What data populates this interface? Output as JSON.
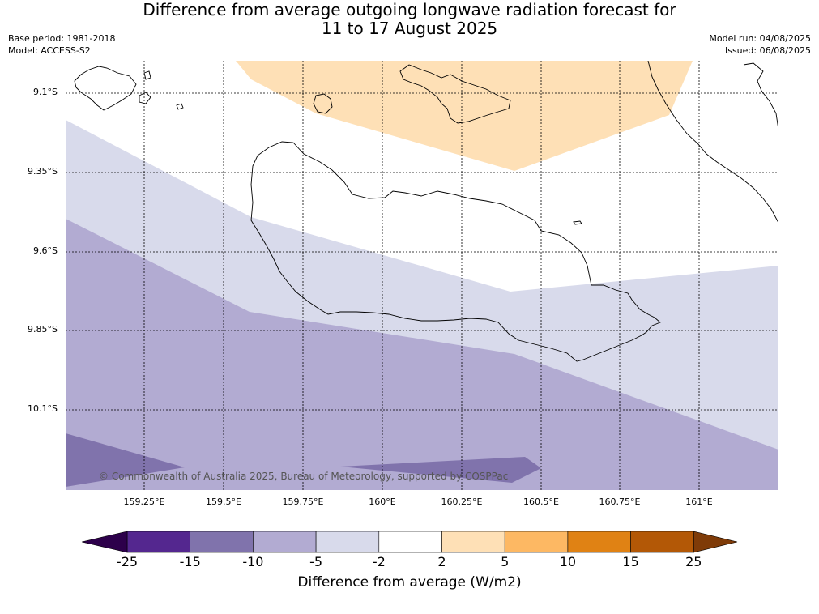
{
  "title_line1": "Difference from average outgoing longwave radiation forecast for",
  "title_line2": "11 to 17 August 2025",
  "base_period": "Base period: 1981-2018",
  "model": "Model: ACCESS-S2",
  "model_run": "Model run: 04/08/2025",
  "issued": "Issued: 06/08/2025",
  "lat_labels": [
    "9.1°S",
    "9.35°S",
    "9.6°S",
    "9.85°S",
    "10.1°S"
  ],
  "lon_labels": [
    "159.25°E",
    "159.5°E",
    "159.75°E",
    "160°E",
    "160.25°E",
    "160.5°E",
    "160.75°E",
    "161°E"
  ],
  "copyright": "© Commonwealth of Australia 2025, Bureau of Meteorology, supported by COSPPac",
  "colorbar": {
    "title": "Difference from average (W/m2)",
    "ticks": [
      "-25",
      "-15",
      "-10",
      "-5",
      "-2",
      "2",
      "5",
      "10",
      "15",
      "25"
    ],
    "colors": [
      "#54278f",
      "#8073ac",
      "#b2abd2",
      "#d8daeb",
      "#ffffff",
      "#fee0b6",
      "#fdb863",
      "#e08214",
      "#b35806"
    ],
    "extend_low_color": "#2d004b",
    "extend_high_color": "#7f3b08"
  },
  "region_colors": {
    "neg10_15": "#8073ac",
    "neg5_10": "#b2abd2",
    "neg2_5": "#d8daeb",
    "neutral": "#ffffff",
    "pos2_5": "#fee0b6"
  }
}
